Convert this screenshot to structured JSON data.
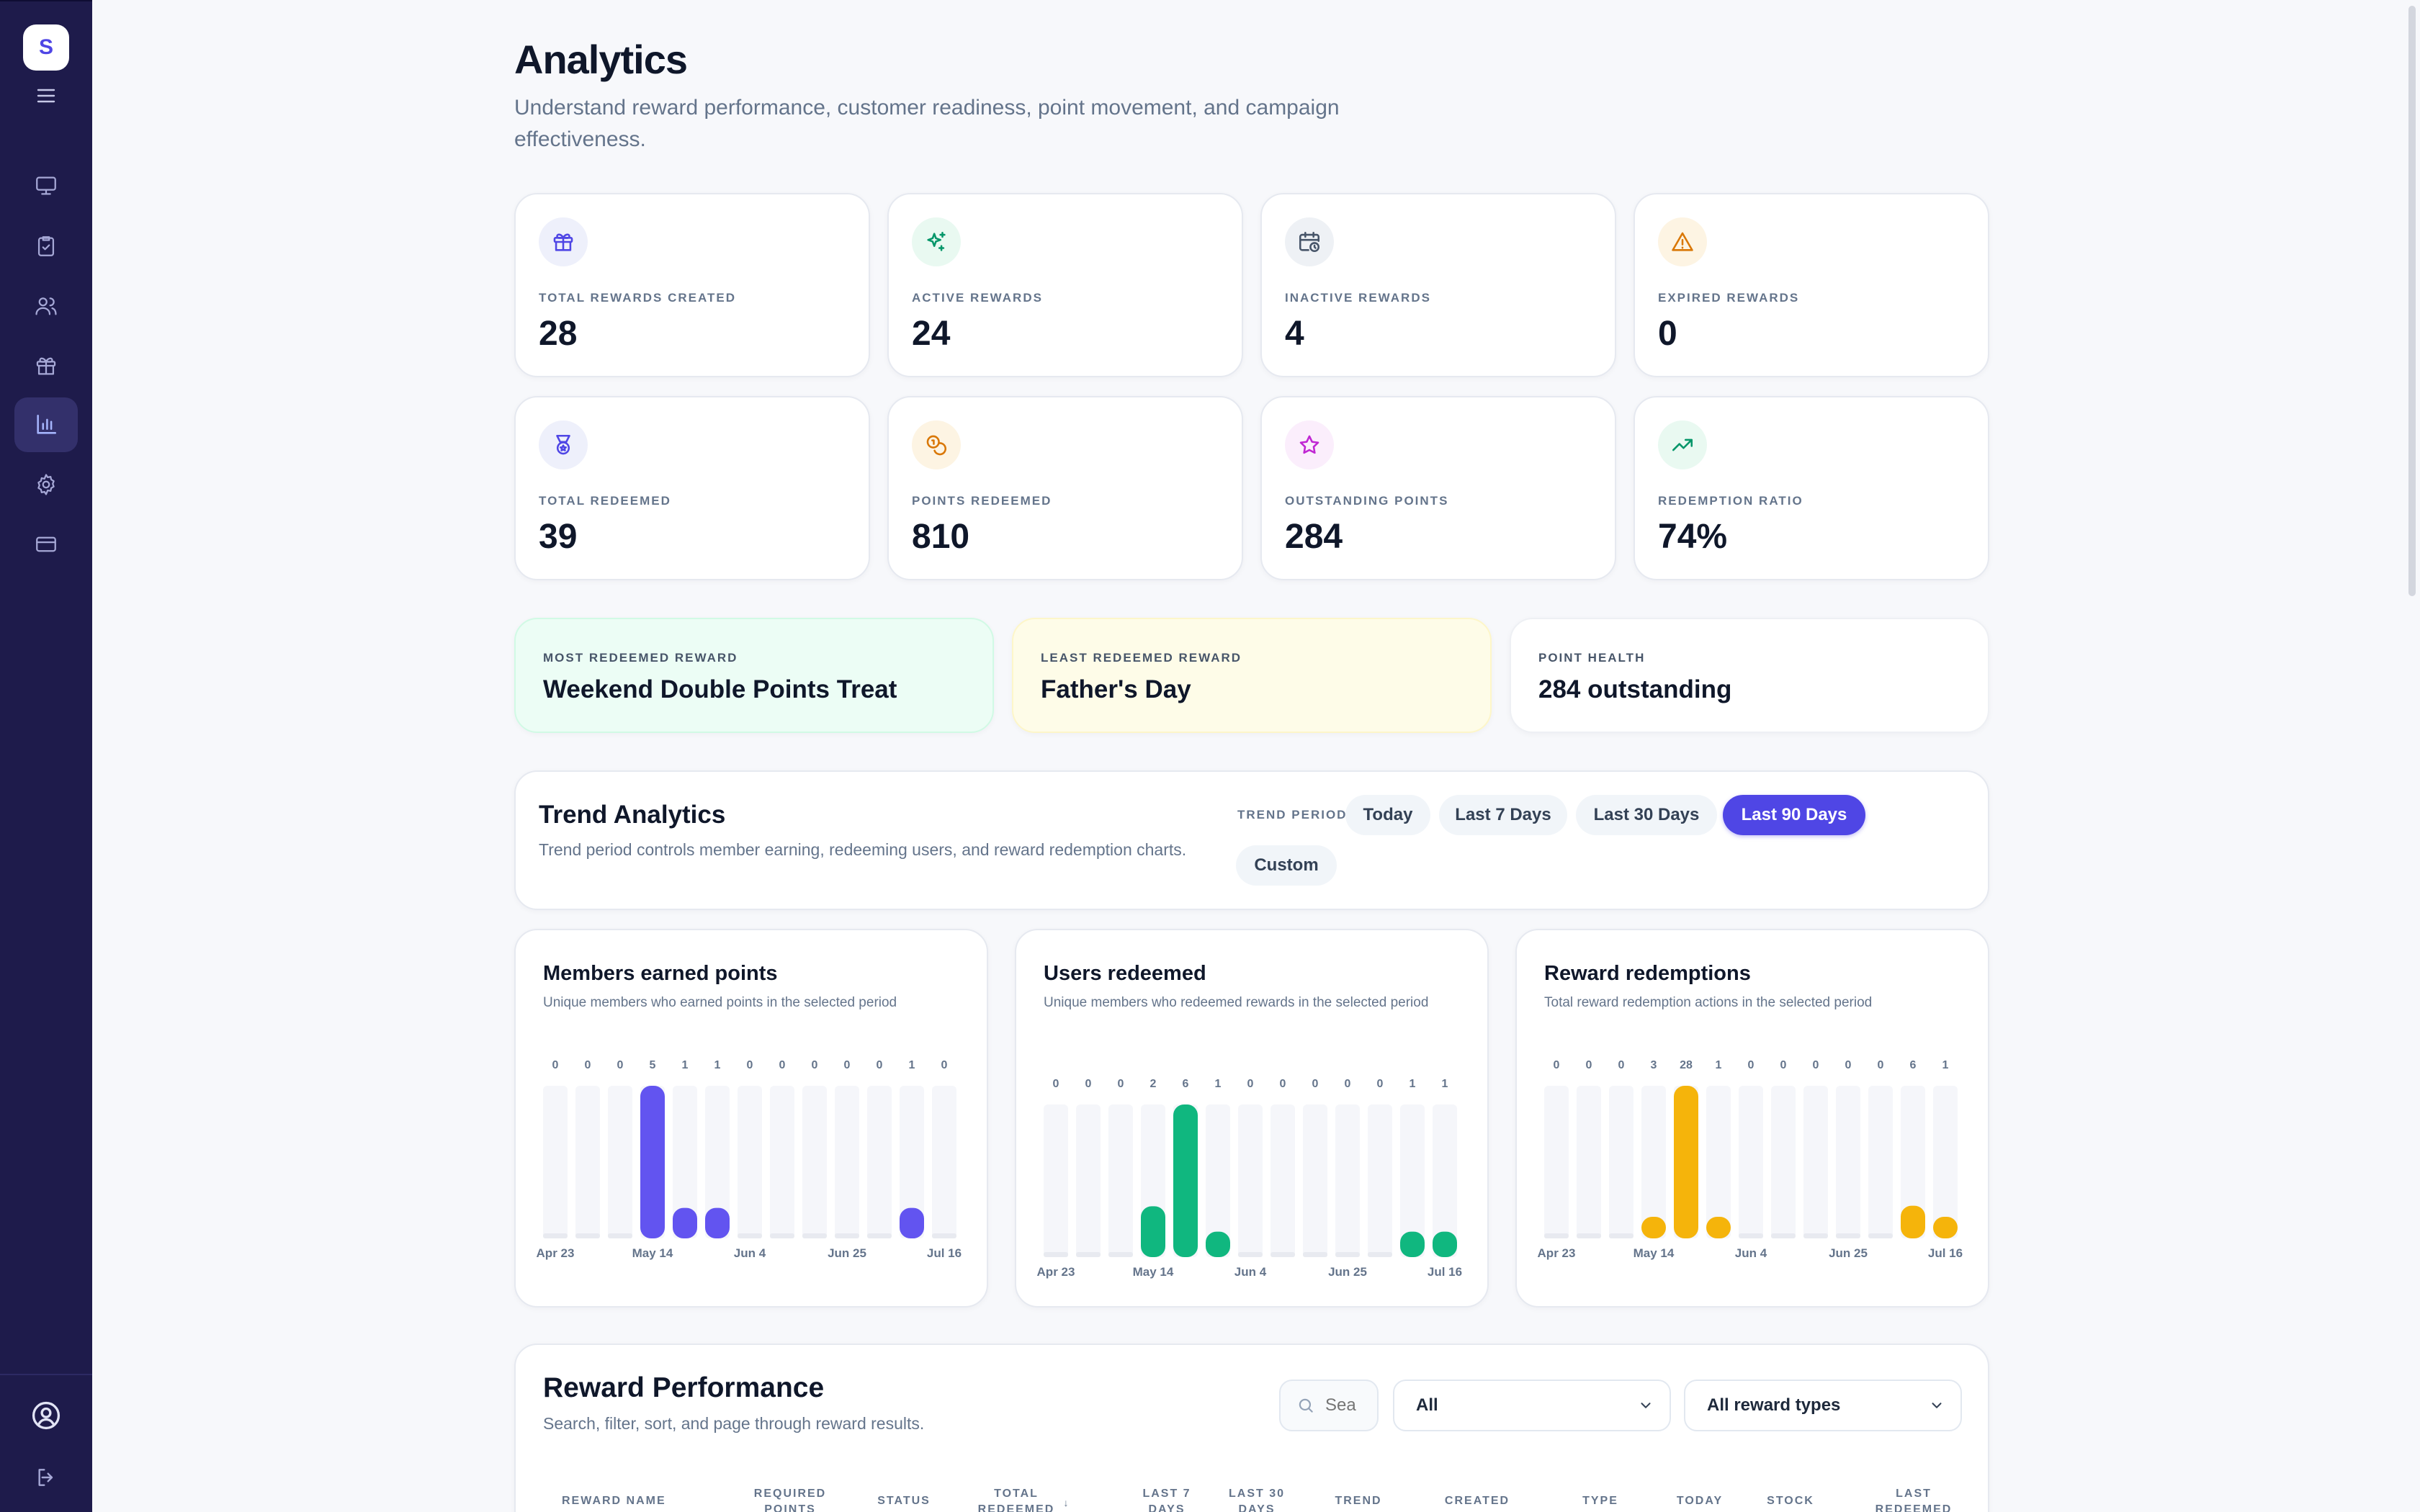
{
  "sidebar": {
    "logo_letter": "S",
    "nav": [
      "monitor-icon",
      "clipboard-check-icon",
      "users-icon",
      "gift-icon",
      "bar-chart-icon",
      "settings-icon",
      "credit-card-icon"
    ],
    "active": "bar-chart-icon"
  },
  "header": {
    "title": "Analytics",
    "subtitle": "Understand reward performance, customer readiness, point movement, and campaign effectiveness."
  },
  "stats": [
    {
      "label": "TOTAL REWARDS CREATED",
      "value": "28",
      "icon": "gift-icon",
      "color": "#4f46e5"
    },
    {
      "label": "ACTIVE REWARDS",
      "value": "24",
      "icon": "sparkles-icon",
      "color": "#059669"
    },
    {
      "label": "INACTIVE REWARDS",
      "value": "4",
      "icon": "calendar-clock-icon",
      "color": "#475569"
    },
    {
      "label": "EXPIRED REWARDS",
      "value": "0",
      "icon": "alert-triangle-icon",
      "color": "#d97706"
    },
    {
      "label": "TOTAL REDEEMED",
      "value": "39",
      "icon": "medal-icon",
      "color": "#4f46e5"
    },
    {
      "label": "POINTS REDEEMED",
      "value": "810",
      "icon": "coins-icon",
      "color": "#d97706"
    },
    {
      "label": "OUTSTANDING POINTS",
      "value": "284",
      "icon": "star-icon",
      "color": "#c026d3"
    },
    {
      "label": "REDEMPTION RATIO",
      "value": "74%",
      "icon": "trending-up-icon",
      "color": "#059669"
    }
  ],
  "highlights": [
    {
      "label": "MOST REDEEMED REWARD",
      "value": "Weekend Double Points Treat",
      "bg": "#ecfdf5",
      "border": "#d1fae5"
    },
    {
      "label": "LEAST REDEEMED REWARD",
      "value": "Father's Day",
      "bg": "#fefce8",
      "border": "#fdf6c9"
    },
    {
      "label": "POINT HEALTH",
      "value": "284 outstanding",
      "bg": "#ffffff",
      "border": "#eef0f4"
    }
  ],
  "trend": {
    "title": "Trend Analytics",
    "description": "Trend period controls member earning, redeeming users, and reward redemption charts.",
    "period_label": "TREND PERIOD",
    "periods": [
      "Today",
      "Last 7 Days",
      "Last 30 Days",
      "Last 90 Days",
      "Custom"
    ],
    "selected": "Last 90 Days"
  },
  "chart_data": [
    {
      "type": "bar",
      "title": "Members earned points",
      "subtitle": "Unique members who earned points in the selected period",
      "values": [
        0,
        0,
        0,
        5,
        1,
        1,
        0,
        0,
        0,
        0,
        0,
        1,
        0
      ],
      "x_ticks": [
        "Apr 23",
        "May 14",
        "Jun 4",
        "Jun 25",
        "Jul 16"
      ],
      "color": "#6254f0"
    },
    {
      "type": "bar",
      "title": "Users redeemed",
      "subtitle": "Unique members who redeemed rewards in the selected period",
      "values": [
        0,
        0,
        0,
        2,
        6,
        1,
        0,
        0,
        0,
        0,
        0,
        1,
        1
      ],
      "x_ticks": [
        "Apr 23",
        "May 14",
        "Jun 4",
        "Jun 25",
        "Jul 16"
      ],
      "color": "#10b77f"
    },
    {
      "type": "bar",
      "title": "Reward redemptions",
      "subtitle": "Total reward redemption actions in the selected period",
      "values": [
        0,
        0,
        0,
        3,
        28,
        1,
        0,
        0,
        0,
        0,
        0,
        6,
        1
      ],
      "x_ticks": [
        "Apr 23",
        "May 14",
        "Jun 4",
        "Jun 25",
        "Jul 16"
      ],
      "color": "#f5b40b"
    }
  ],
  "performance": {
    "title": "Reward Performance",
    "description": "Search, filter, sort, and page through reward results.",
    "search_placeholder": "Sea",
    "status_filter": "All",
    "type_filter": "All reward types",
    "columns": [
      "REWARD NAME",
      "REQUIRED POINTS",
      "STATUS",
      "TOTAL REDEEMED",
      "LAST 7 DAYS",
      "LAST 30 DAYS",
      "TREND",
      "CREATED",
      "TYPE",
      "TODAY",
      "STOCK",
      "LAST REDEEMED"
    ]
  }
}
